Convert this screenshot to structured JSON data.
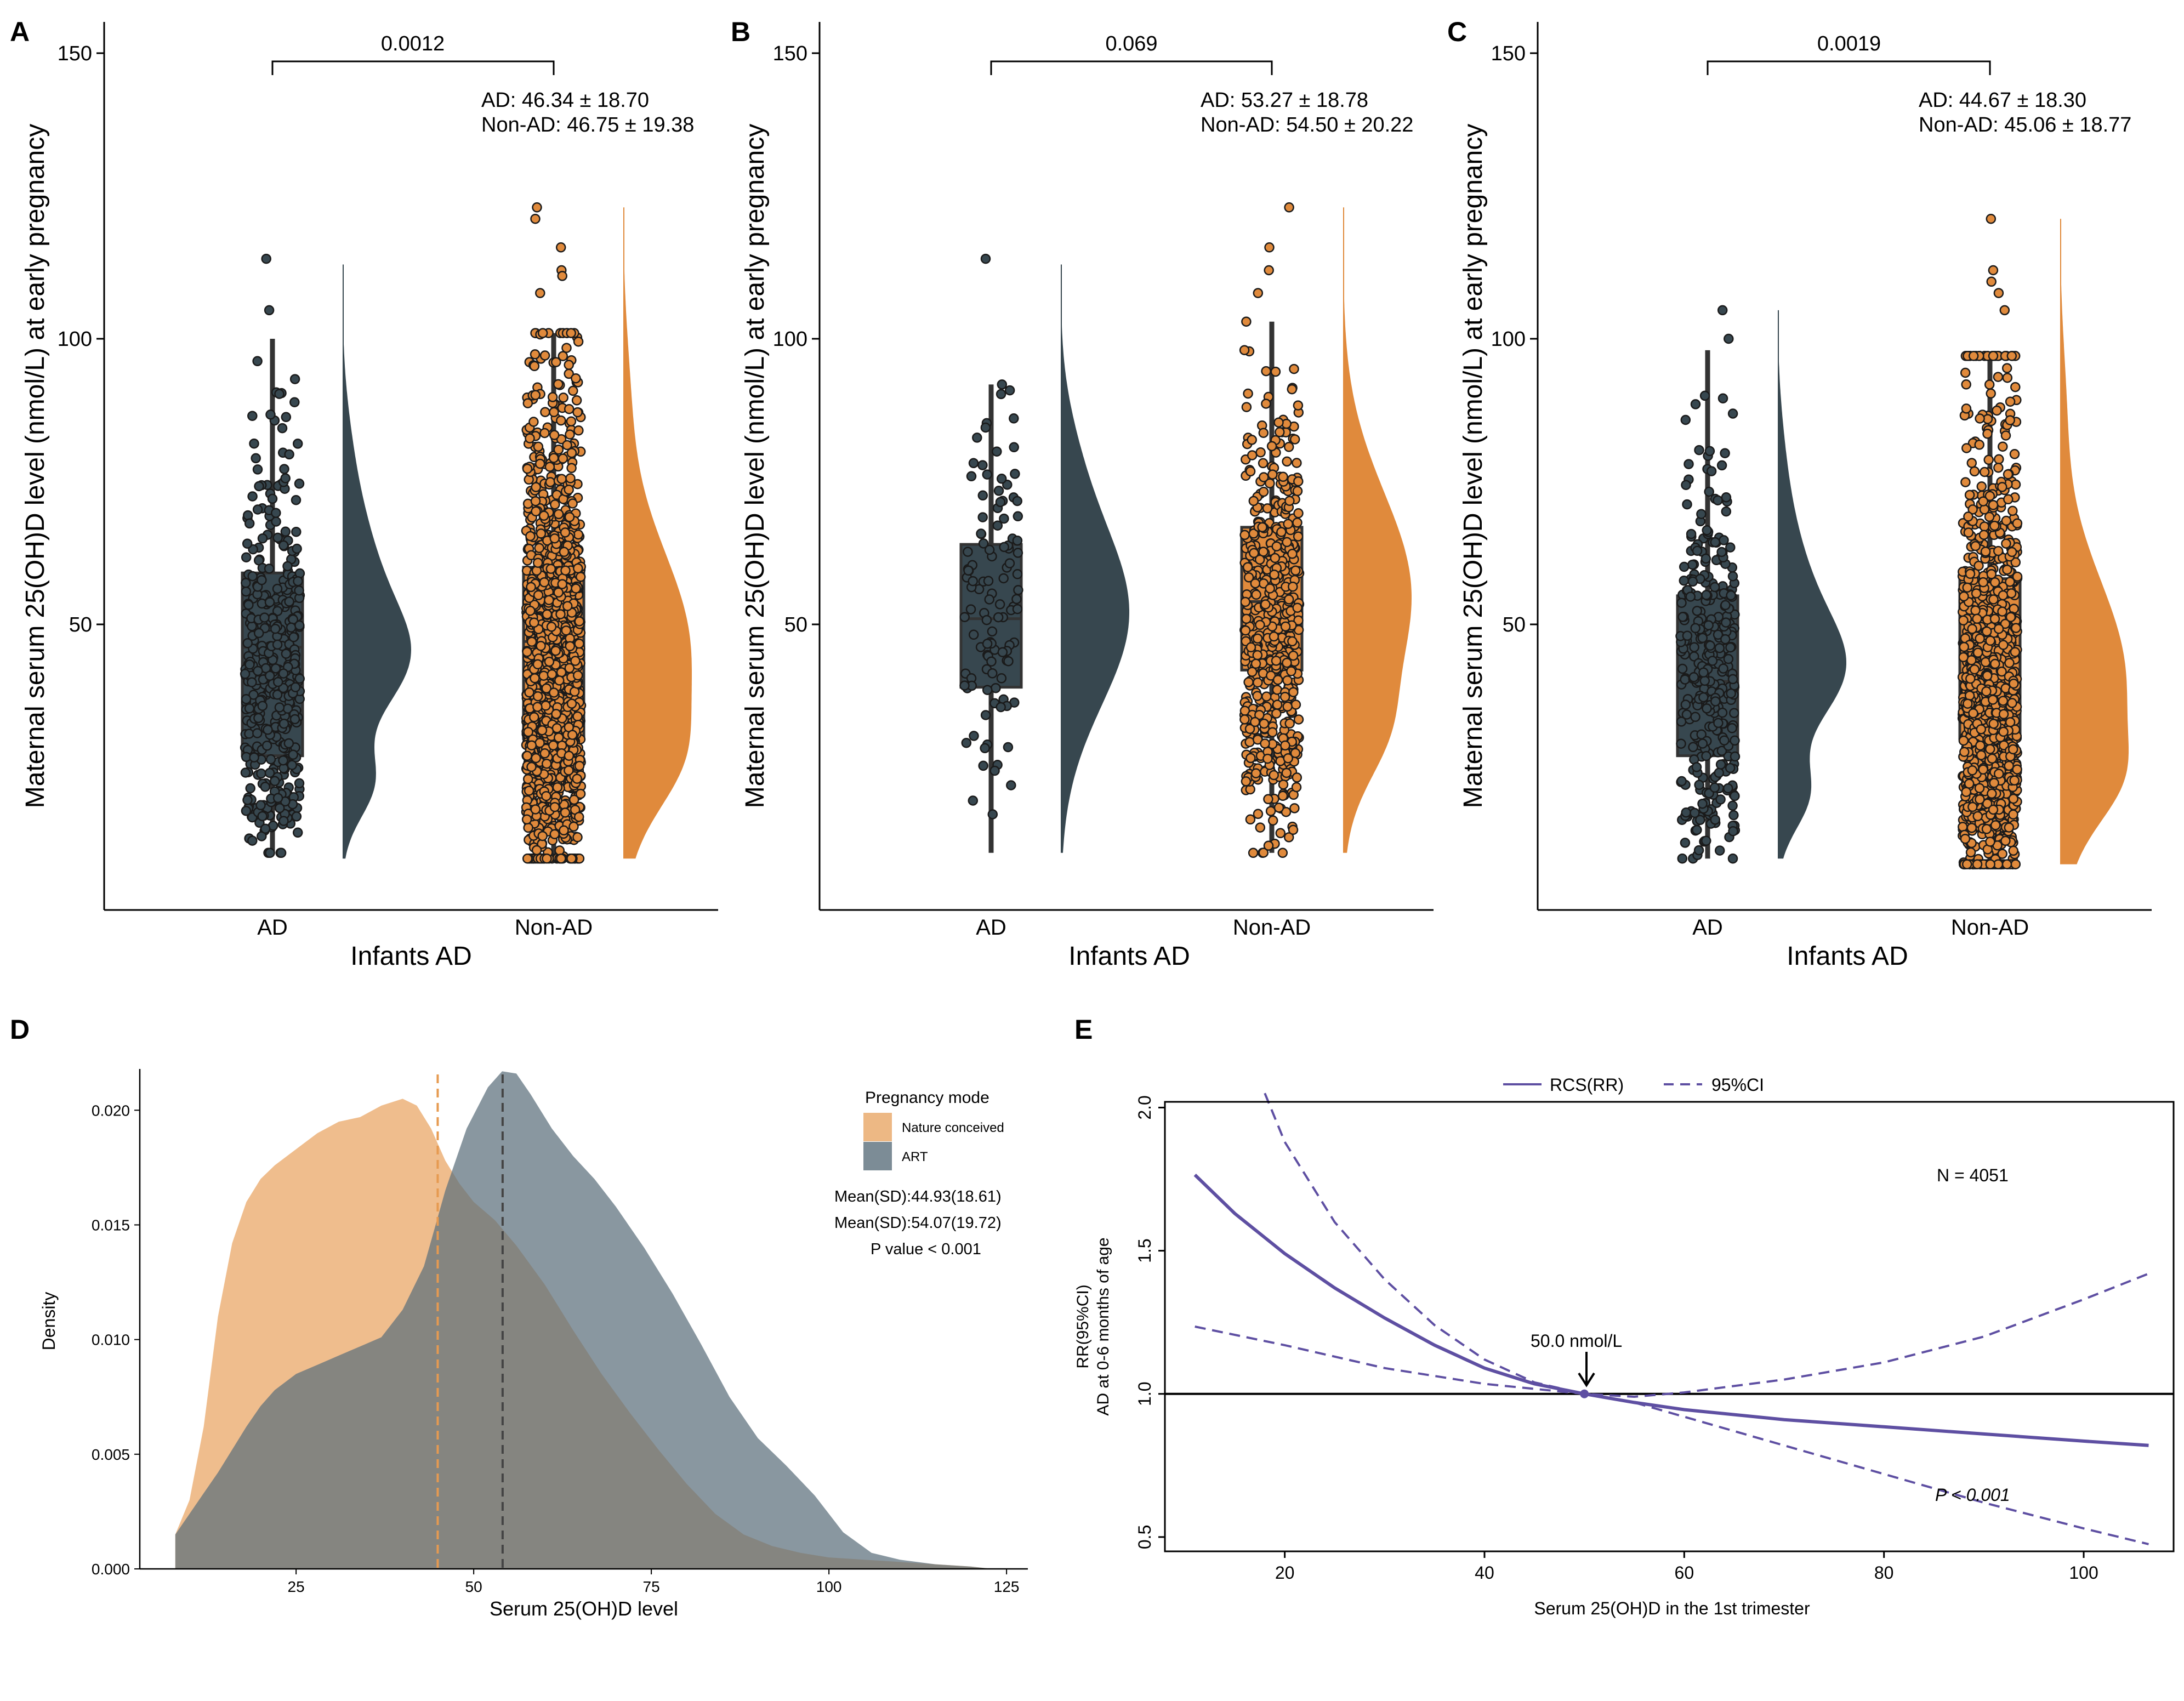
{
  "colors": {
    "ad": "#37474f",
    "non_ad": "#e08a3c",
    "nature": "#e69a50",
    "art": "#5b6f7c",
    "overlap": "#7d7a67",
    "rcs": "#5e4fa2"
  },
  "panels_abc": {
    "xlabel": "Infants AD",
    "ylabel": "Maternal serum 25(OH)D level (nmol/L) at early pregnancy",
    "yticks": [
      "50",
      "100",
      "150"
    ],
    "groups": [
      "AD",
      "Non-AD"
    ]
  },
  "chart_data": [
    {
      "type": "raincloud",
      "panel": "A",
      "categories": [
        "AD",
        "Non-AD"
      ],
      "p_value": "0.0012",
      "stats_ad": "AD: 46.34 ± 18.70",
      "stats_non": "Non-AD: 46.75 ± 19.38",
      "ylim": [
        0,
        150
      ],
      "box": [
        {
          "group": "AD",
          "min": 10,
          "q1": 27,
          "median": 46,
          "q3": 59,
          "max": 100,
          "outliers": [
            105,
            114
          ],
          "n_points": 420
        },
        {
          "group": "Non-AD",
          "min": 9,
          "q1": 30,
          "median": 47,
          "q3": 60,
          "max": 101,
          "outliers": [
            123,
            121,
            116,
            112,
            111,
            108
          ],
          "n_points": 1500
        }
      ],
      "density": [
        {
          "group": "AD",
          "min": 9,
          "max": 113,
          "peaks": [
            {
              "at": 43,
              "h": 1.0,
              "w": 9
            },
            {
              "at": 22,
              "h": 0.55,
              "w": 6
            },
            {
              "at": 58,
              "h": 0.6,
              "w": 12
            },
            {
              "at": 80,
              "h": 0.12,
              "w": 10
            }
          ]
        },
        {
          "group": "Non-AD",
          "min": 9,
          "max": 123,
          "peaks": [
            {
              "at": 45,
              "h": 1.0,
              "w": 18
            },
            {
              "at": 25,
              "h": 0.35,
              "w": 8
            },
            {
              "at": 90,
              "h": 0.08,
              "w": 12
            }
          ]
        }
      ]
    },
    {
      "type": "raincloud",
      "panel": "B",
      "categories": [
        "AD",
        "Non-AD"
      ],
      "p_value": "0.069",
      "stats_ad": "AD: 53.27 ± 18.78",
      "stats_non": "Non-AD: 54.50 ± 20.22",
      "ylim": [
        0,
        150
      ],
      "box": [
        {
          "group": "AD",
          "min": 10,
          "q1": 39,
          "median": 51,
          "q3": 64,
          "max": 92,
          "outliers": [
            114
          ],
          "n_points": 110
        },
        {
          "group": "Non-AD",
          "min": 10,
          "q1": 42,
          "median": 54,
          "q3": 67,
          "max": 103,
          "outliers": [
            123,
            116,
            112,
            108
          ],
          "n_points": 520
        }
      ],
      "density": [
        {
          "group": "AD",
          "min": 10,
          "max": 113,
          "peaks": [
            {
              "at": 52,
              "h": 1.0,
              "w": 16
            },
            {
              "at": 80,
              "h": 0.1,
              "w": 10
            }
          ]
        },
        {
          "group": "Non-AD",
          "min": 10,
          "max": 123,
          "peaks": [
            {
              "at": 55,
              "h": 1.0,
              "w": 18
            },
            {
              "at": 30,
              "h": 0.3,
              "w": 8
            }
          ]
        }
      ]
    },
    {
      "type": "raincloud",
      "panel": "C",
      "categories": [
        "AD",
        "Non-AD"
      ],
      "p_value": "0.0019",
      "stats_ad": "AD: 44.67 ± 18.30",
      "stats_non": "Non-AD: 45.06 ± 18.77",
      "ylim": [
        0,
        150
      ],
      "box": [
        {
          "group": "AD",
          "min": 9,
          "q1": 27,
          "median": 40,
          "q3": 55,
          "max": 98,
          "outliers": [
            105,
            100
          ],
          "n_points": 330
        },
        {
          "group": "Non-AD",
          "min": 8,
          "q1": 30,
          "median": 45,
          "q3": 58,
          "max": 97,
          "outliers": [
            121,
            112,
            110,
            108,
            105
          ],
          "n_points": 1200
        }
      ],
      "density": [
        {
          "group": "AD",
          "min": 9,
          "max": 105,
          "peaks": [
            {
              "at": 41,
              "h": 1.0,
              "w": 9
            },
            {
              "at": 20,
              "h": 0.55,
              "w": 6
            },
            {
              "at": 55,
              "h": 0.55,
              "w": 12
            },
            {
              "at": 78,
              "h": 0.1,
              "w": 10
            }
          ]
        },
        {
          "group": "Non-AD",
          "min": 8,
          "max": 121,
          "peaks": [
            {
              "at": 40,
              "h": 1.0,
              "w": 18
            },
            {
              "at": 22,
              "h": 0.35,
              "w": 7
            },
            {
              "at": 88,
              "h": 0.08,
              "w": 12
            }
          ]
        }
      ]
    },
    {
      "type": "density",
      "panel": "D",
      "title": "",
      "xlabel": "Serum 25(OH)D level",
      "ylabel": "Density",
      "xlim": [
        3,
        128
      ],
      "ylim": [
        0,
        0.0218
      ],
      "xticks": [
        25,
        50,
        75,
        100,
        125
      ],
      "yticks": [
        0.0,
        0.005,
        0.01,
        0.015,
        0.02
      ],
      "xtick_labels": [
        "25",
        "50",
        "75",
        "100",
        "125"
      ],
      "ytick_labels": [
        "0.000",
        "0.005",
        "0.010",
        "0.015",
        "0.020"
      ],
      "legend_title": "Pregnancy mode",
      "series": [
        {
          "name": "Nature conceived",
          "mean": 44.93,
          "x": [
            8,
            10,
            12,
            14,
            16,
            18,
            20,
            22,
            25,
            28,
            31,
            34,
            37,
            40,
            42,
            44,
            46,
            48,
            50,
            53,
            56,
            60,
            64,
            68,
            72,
            76,
            80,
            84,
            88,
            92,
            96,
            100,
            105,
            110,
            115,
            120,
            123
          ],
          "y": [
            0.0015,
            0.003,
            0.0062,
            0.011,
            0.0142,
            0.016,
            0.017,
            0.0176,
            0.0183,
            0.019,
            0.0195,
            0.0197,
            0.0202,
            0.0205,
            0.0202,
            0.0192,
            0.0178,
            0.0168,
            0.016,
            0.0152,
            0.0141,
            0.0124,
            0.0104,
            0.0085,
            0.0068,
            0.0052,
            0.0037,
            0.0024,
            0.0015,
            0.001,
            0.0007,
            0.0005,
            0.0004,
            0.0003,
            0.0002,
            0.0001,
            0.0
          ]
        },
        {
          "name": "ART",
          "mean": 54.07,
          "x": [
            8,
            10,
            12,
            14,
            16,
            18,
            20,
            22,
            25,
            28,
            31,
            34,
            37,
            40,
            43,
            46,
            49,
            52,
            54,
            56,
            58,
            61,
            64,
            67,
            70,
            74,
            78,
            82,
            86,
            90,
            94,
            98,
            102,
            106,
            110,
            115,
            120,
            123
          ],
          "y": [
            0.0015,
            0.0024,
            0.0033,
            0.0042,
            0.0052,
            0.0062,
            0.0071,
            0.0078,
            0.0085,
            0.0089,
            0.0093,
            0.0097,
            0.0101,
            0.0113,
            0.0132,
            0.0165,
            0.0192,
            0.021,
            0.0217,
            0.0216,
            0.0207,
            0.0192,
            0.018,
            0.017,
            0.0158,
            0.014,
            0.012,
            0.0098,
            0.0075,
            0.0057,
            0.0045,
            0.0032,
            0.0016,
            0.0007,
            0.0004,
            0.0002,
            0.0001,
            0.0
          ]
        }
      ],
      "annotations": [
        "Mean(SD):44.93(18.61)",
        "Mean(SD):54.07(19.72)",
        "P value < 0.001"
      ]
    },
    {
      "type": "line",
      "panel": "E",
      "xlabel": "Serum 25(OH)D in the 1st trimester",
      "ylabel_line1": "RR(95%CI)",
      "ylabel_line2": "AD at 0-6 months of age",
      "xlim": [
        8,
        109
      ],
      "ylim": [
        0.45,
        2.02
      ],
      "xticks": [
        20,
        40,
        60,
        80,
        100
      ],
      "yticks": [
        0.5,
        1.0,
        1.5,
        2.0
      ],
      "xtick_labels": [
        "20",
        "40",
        "60",
        "80",
        "100"
      ],
      "ytick_labels": [
        "0.5",
        "1.0",
        "1.5",
        "2.0"
      ],
      "reference_line": 1.0,
      "knot": 50.0,
      "knot_label": "50.0 nmol/L",
      "n_label": "N = 4051",
      "p_label": "P < 0.001",
      "series": [
        {
          "name": "RCS(RR)",
          "style": "solid",
          "x": [
            11,
            15,
            20,
            25,
            30,
            35,
            40,
            45,
            50,
            55,
            60,
            70,
            80,
            90,
            100,
            106.5
          ],
          "y": [
            1.765,
            1.63,
            1.49,
            1.37,
            1.265,
            1.17,
            1.09,
            1.035,
            1.0,
            0.97,
            0.945,
            0.91,
            0.885,
            0.86,
            0.835,
            0.82
          ]
        },
        {
          "name": "95%CI",
          "style": "dashed",
          "x": [
            18,
            20,
            25,
            30,
            35,
            40,
            45,
            50,
            55,
            60,
            70,
            80,
            90,
            100,
            106.5
          ],
          "y": [
            2.05,
            1.88,
            1.6,
            1.4,
            1.24,
            1.12,
            1.04,
            1.0,
            0.97,
            0.92,
            0.82,
            0.72,
            0.62,
            0.53,
            0.475
          ]
        },
        {
          "name": "95%CI",
          "style": "dashed",
          "x": [
            11,
            20,
            30,
            40,
            50,
            55,
            60,
            70,
            80,
            90,
            100,
            106.5
          ],
          "y": [
            1.235,
            1.17,
            1.09,
            1.035,
            1.0,
            0.99,
            1.005,
            1.05,
            1.11,
            1.2,
            1.33,
            1.42
          ]
        }
      ],
      "legend": [
        "RCS(RR)",
        "95%CI"
      ]
    }
  ]
}
